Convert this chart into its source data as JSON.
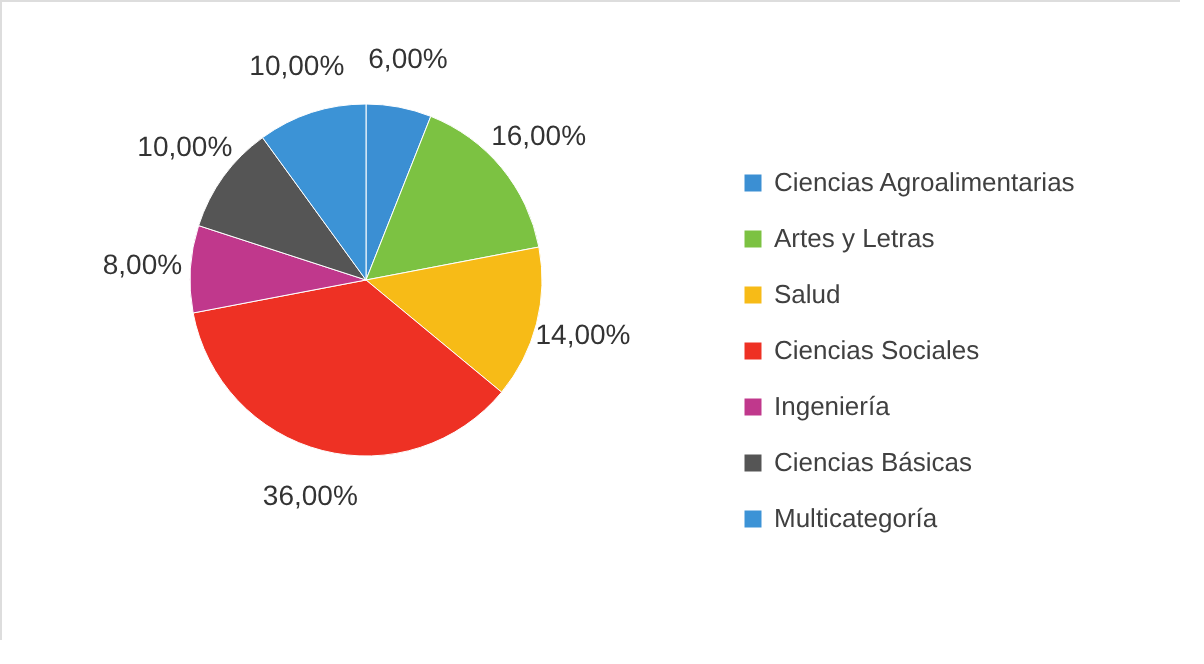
{
  "chart_data": {
    "type": "pie",
    "categories": [
      "Ciencias Agroalimentarias",
      "Artes y Letras",
      "Salud",
      "Ciencias Sociales",
      "Ingeniería",
      "Ciencias Básicas",
      "Multicategoría"
    ],
    "values": [
      6,
      16,
      14,
      36,
      8,
      10,
      10
    ],
    "value_labels": [
      "6,00%",
      "16,00%",
      "14,00%",
      "36,00%",
      "8,00%",
      "10,00%",
      "10,00%"
    ],
    "colors": [
      "#3b8fd3",
      "#7cc242",
      "#f7bb17",
      "#ee3124",
      "#c0388c",
      "#555555",
      "#3c93d6"
    ],
    "legend": "right"
  }
}
